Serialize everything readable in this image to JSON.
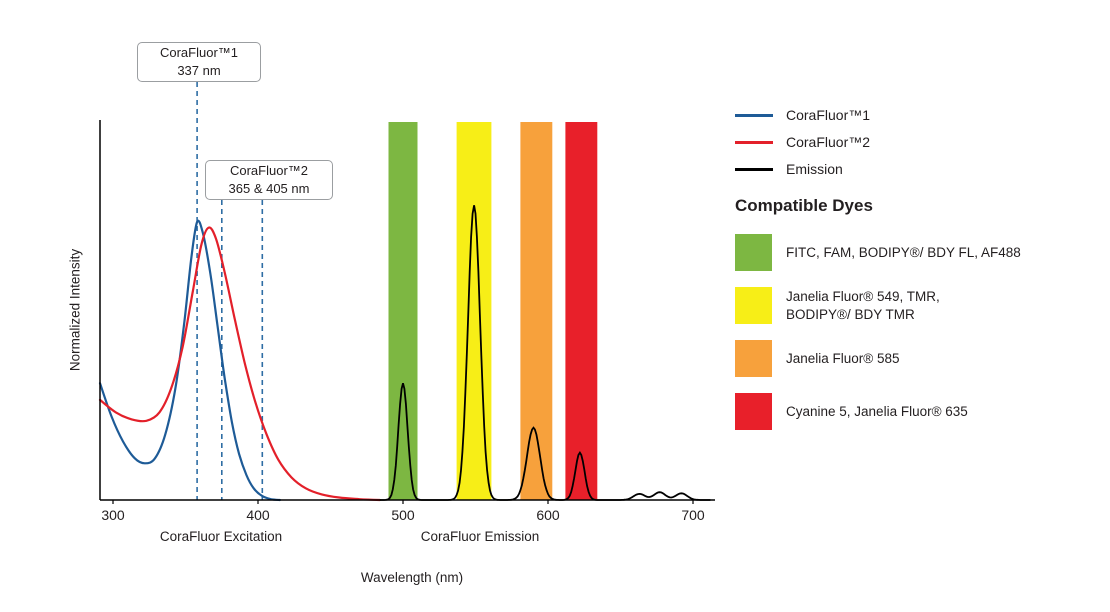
{
  "chart_data": {
    "type": "line",
    "title": "",
    "xlabel": "Wavelength (nm)",
    "ylabel": "Normalized Intensity",
    "x_axis_section_labels": [
      "CoraFluor Excitation",
      "CoraFluor Emission"
    ],
    "x_ticks": [
      300,
      400,
      500,
      600,
      700
    ],
    "x_range_nm": [
      291,
      715
    ],
    "y_range": [
      0,
      1.1
    ],
    "grid": false,
    "legend_position": "right",
    "dash_color": "#2e6da4",
    "annotations": [
      {
        "line1": "CoraFluor™1",
        "line2": "337 nm",
        "marker_lines_nm": [
          358
        ]
      },
      {
        "line1": "CoraFluor™2",
        "line2": "365 & 405 nm",
        "marker_lines_nm": [
          375,
          403
        ]
      }
    ],
    "bands": [
      {
        "name": "green-band",
        "nm_start": 490,
        "nm_end": 510,
        "color": "#7db742"
      },
      {
        "name": "yellow-band",
        "nm_start": 537,
        "nm_end": 561,
        "color": "#f7ee17"
      },
      {
        "name": "orange-band",
        "nm_start": 581,
        "nm_end": 603,
        "color": "#f7a13c"
      },
      {
        "name": "red-band",
        "nm_start": 612,
        "nm_end": 634,
        "color": "#e8202a"
      }
    ],
    "series": [
      {
        "name": "CoraFluor™1",
        "kind": "excitation",
        "color": "#1e5b97",
        "points": [
          [
            291,
            0.42
          ],
          [
            299,
            0.3
          ],
          [
            307,
            0.21
          ],
          [
            315,
            0.15
          ],
          [
            322,
            0.132
          ],
          [
            329,
            0.15
          ],
          [
            336,
            0.235
          ],
          [
            343,
            0.4
          ],
          [
            349,
            0.63
          ],
          [
            354,
            0.87
          ],
          [
            358,
            1.0
          ],
          [
            362,
            0.96
          ],
          [
            367,
            0.82
          ],
          [
            372,
            0.63
          ],
          [
            377,
            0.44
          ],
          [
            382,
            0.28
          ],
          [
            387,
            0.165
          ],
          [
            392,
            0.09
          ],
          [
            397,
            0.042
          ],
          [
            403,
            0.014
          ],
          [
            409,
            0.003
          ],
          [
            415,
            0.0
          ]
        ]
      },
      {
        "name": "CoraFluor™2",
        "kind": "excitation",
        "color": "#e3202a",
        "points": [
          [
            291,
            0.36
          ],
          [
            302,
            0.315
          ],
          [
            313,
            0.29
          ],
          [
            323,
            0.285
          ],
          [
            332,
            0.315
          ],
          [
            340,
            0.4
          ],
          [
            348,
            0.55
          ],
          [
            355,
            0.75
          ],
          [
            361,
            0.92
          ],
          [
            366,
            0.98
          ],
          [
            371,
            0.94
          ],
          [
            377,
            0.82
          ],
          [
            384,
            0.65
          ],
          [
            391,
            0.49
          ],
          [
            398,
            0.355
          ],
          [
            406,
            0.235
          ],
          [
            414,
            0.145
          ],
          [
            423,
            0.082
          ],
          [
            433,
            0.042
          ],
          [
            444,
            0.02
          ],
          [
            456,
            0.009
          ],
          [
            470,
            0.003
          ],
          [
            484,
            0.0
          ]
        ]
      },
      {
        "name": "Emission",
        "kind": "emission",
        "color": "#000000",
        "sample_range_nm": [
          484,
          712
        ],
        "peaks": [
          {
            "center_nm": 500,
            "height": 0.42,
            "sigma_nm": 3.2
          },
          {
            "center_nm": 549,
            "height": 1.06,
            "sigma_nm": 4.2
          },
          {
            "center_nm": 590,
            "height": 0.26,
            "sigma_nm": 4.5
          },
          {
            "center_nm": 622,
            "height": 0.17,
            "sigma_nm": 3.2
          },
          {
            "center_nm": 663,
            "height": 0.022,
            "sigma_nm": 4.0
          },
          {
            "center_nm": 677,
            "height": 0.028,
            "sigma_nm": 4.0
          },
          {
            "center_nm": 692,
            "height": 0.024,
            "sigma_nm": 4.0
          }
        ]
      }
    ]
  },
  "compatible_dyes": {
    "heading": "Compatible Dyes",
    "items": [
      {
        "color": "#7db742",
        "lines": [
          "FITC, FAM, BODIPY®/ BDY FL, AF488"
        ]
      },
      {
        "color": "#f7ee17",
        "lines": [
          "Janelia Fluor® 549, TMR,",
          "BODIPY®/ BDY TMR"
        ]
      },
      {
        "color": "#f7a13c",
        "lines": [
          "Janelia Fluor® 585"
        ]
      },
      {
        "color": "#e8202a",
        "lines": [
          "Cyanine 5, Janelia Fluor® 635"
        ]
      }
    ]
  }
}
